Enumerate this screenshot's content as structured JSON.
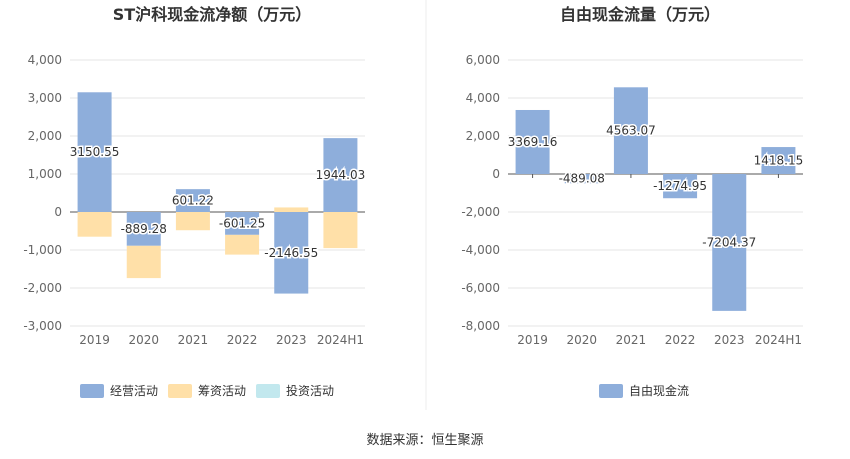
{
  "chart_data": [
    {
      "type": "bar",
      "stacked": true,
      "title": "ST沪科现金流净额（万元）",
      "categories": [
        "2019",
        "2020",
        "2021",
        "2022",
        "2023",
        "2024H1"
      ],
      "ylim": [
        -3000,
        4000
      ],
      "yticks": [
        4000,
        3000,
        2000,
        1000,
        0,
        -1000,
        -2000,
        -3000
      ],
      "ytick_labels": [
        "4,000",
        "3,000",
        "2,000",
        "1,000",
        "0",
        "-1,000",
        "-2,000",
        "-3,000"
      ],
      "grid": true,
      "legend_position": "bottom",
      "series": [
        {
          "name": "经营活动",
          "color": "#8eaedb",
          "values": [
            3150.55,
            -889.28,
            601.22,
            -601.25,
            -2146.55,
            1944.03
          ],
          "labels": [
            "3150.55",
            "-889.28",
            "601.22",
            "-601.25",
            "-2146.55",
            "1944.03"
          ]
        },
        {
          "name": "筹资活动",
          "color": "#ffe0a8",
          "values": [
            -650,
            -850,
            -480,
            -520,
            120,
            -950
          ]
        },
        {
          "name": "投资活动",
          "color": "#c2e8ee",
          "values": [
            0,
            0,
            0,
            0,
            0,
            0
          ]
        }
      ]
    },
    {
      "type": "bar",
      "title": "自由现金流量（万元）",
      "categories": [
        "2019",
        "2020",
        "2021",
        "2022",
        "2023",
        "2024H1"
      ],
      "ylim": [
        -8000,
        6000
      ],
      "yticks": [
        6000,
        4000,
        2000,
        0,
        -2000,
        -4000,
        -6000,
        -8000
      ],
      "ytick_labels": [
        "6,000",
        "4,000",
        "2,000",
        "0",
        "-2,000",
        "-4,000",
        "-6,000",
        "-8,000"
      ],
      "grid": true,
      "legend_position": "bottom",
      "series": [
        {
          "name": "自由现金流",
          "color": "#8eaedb",
          "values": [
            3369.16,
            -489.08,
            4563.07,
            -1274.95,
            -7204.37,
            1418.15
          ],
          "labels": [
            "3369.16",
            "-489.08",
            "4563.07",
            "-1274.95",
            "-7204.37",
            "1418.15"
          ]
        }
      ]
    }
  ],
  "footer": {
    "source": "数据来源：恒生聚源"
  }
}
